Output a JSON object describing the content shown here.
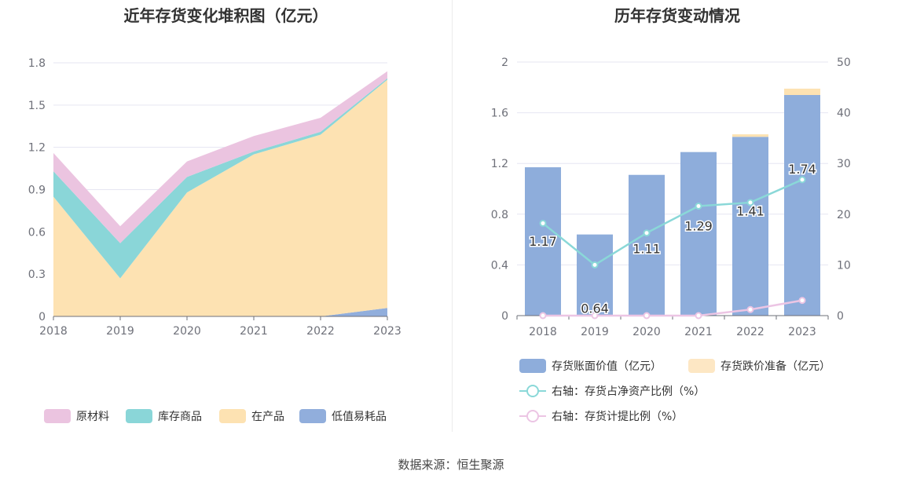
{
  "left_chart": {
    "title": "近年存货变化堆积图（亿元）",
    "legend": [
      {
        "name": "原材料",
        "color": "#ebc4e0"
      },
      {
        "name": "库存商品",
        "color": "#8ad6d8"
      },
      {
        "name": "在产品",
        "color": "#fde2b2"
      },
      {
        "name": "低值易耗品",
        "color": "#91aedc"
      }
    ]
  },
  "right_chart": {
    "title": "历年存货变动情况",
    "legend": [
      {
        "name": "存货账面价值（亿元）",
        "color": "#8eaddb",
        "kind": "bar"
      },
      {
        "name": "存货跌价准备（亿元）",
        "color": "#fde7c4",
        "kind": "bar"
      },
      {
        "name": "右轴：存货占净资产比例（%）",
        "color": "#8ad8d8",
        "kind": "line"
      },
      {
        "name": "右轴：存货计提比例（%）",
        "color": "#ecc5e4",
        "kind": "line"
      }
    ]
  },
  "source": "数据来源：恒生聚源",
  "chart_data": [
    {
      "type": "area",
      "stacked": true,
      "title": "近年存货变化堆积图（亿元）",
      "x": [
        "2018",
        "2019",
        "2020",
        "2021",
        "2022",
        "2023"
      ],
      "ylim": [
        0,
        1.8
      ],
      "yticks": [
        "0",
        "0.3",
        "0.6",
        "0.9",
        "1.2",
        "1.5",
        "1.8"
      ],
      "series": [
        {
          "name": "低值易耗品",
          "color": "#91aedc",
          "values": [
            0,
            0,
            0,
            0,
            0,
            0.06
          ]
        },
        {
          "name": "在产品",
          "color": "#fde2b2",
          "values": [
            0.85,
            0.27,
            0.88,
            1.15,
            1.29,
            1.62
          ]
        },
        {
          "name": "库存商品",
          "color": "#8ad6d8",
          "values": [
            0.18,
            0.25,
            0.11,
            0.02,
            0.02,
            0.01
          ]
        },
        {
          "name": "原材料",
          "color": "#ebc4e0",
          "values": [
            0.13,
            0.12,
            0.11,
            0.11,
            0.1,
            0.05
          ]
        }
      ],
      "legend_position": "bottom",
      "grid": true
    },
    {
      "type": "bar",
      "stacked": true,
      "title": "历年存货变动情况",
      "categories": [
        "2018",
        "2019",
        "2020",
        "2021",
        "2022",
        "2023"
      ],
      "ylim": [
        0,
        2
      ],
      "yticks": [
        "0",
        "0.4",
        "0.8",
        "1.2",
        "1.6",
        "2"
      ],
      "y2lim": [
        0,
        50
      ],
      "y2ticks": [
        "0",
        "10",
        "20",
        "30",
        "40",
        "50"
      ],
      "series": [
        {
          "name": "存货账面价值（亿元）",
          "color": "#8eaddb",
          "axis": "left",
          "values": [
            1.17,
            0.64,
            1.11,
            1.29,
            1.41,
            1.74
          ],
          "labels": [
            "1.17",
            "0.64",
            "1.11",
            "1.29",
            "1.41",
            "1.74"
          ]
        },
        {
          "name": "存货跌价准备（亿元）",
          "color": "#fde2b2",
          "axis": "left",
          "values": [
            0,
            0,
            0,
            0,
            0.02,
            0.05
          ]
        }
      ],
      "lines": [
        {
          "name": "右轴：存货占净资产比例（%）",
          "color": "#8ad8d8",
          "axis": "right",
          "values": [
            18.2,
            10.0,
            16.3,
            21.6,
            22.3,
            26.8
          ]
        },
        {
          "name": "右轴：存货计提比例（%）",
          "color": "#ecc5e4",
          "axis": "right",
          "values": [
            0,
            0,
            0,
            0,
            1.2,
            3.0
          ]
        }
      ],
      "legend_position": "bottom",
      "grid": true
    }
  ]
}
